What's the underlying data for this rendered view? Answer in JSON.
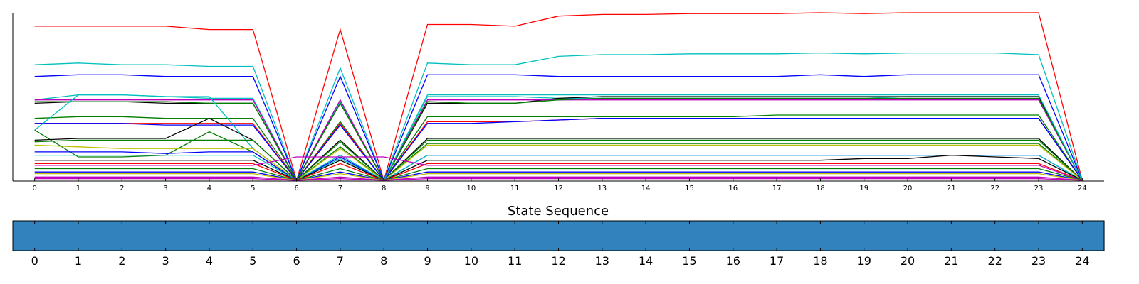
{
  "chart_data": [
    {
      "type": "line",
      "title": "",
      "xlabel": "",
      "ylabel": "",
      "x": [
        0,
        1,
        2,
        3,
        4,
        5,
        6,
        7,
        8,
        9,
        10,
        11,
        12,
        13,
        14,
        15,
        16,
        17,
        18,
        19,
        20,
        21,
        22,
        23,
        24
      ],
      "x_tick_labels": [
        "0",
        "1",
        "2",
        "3",
        "4",
        "5",
        "6",
        "7",
        "8",
        "9",
        "10",
        "11",
        "12",
        "13",
        "14",
        "15",
        "16",
        "17",
        "18",
        "19",
        "20",
        "21",
        "22",
        "23",
        "24"
      ],
      "xlim": [
        -0.5,
        24.5
      ],
      "ylim": [
        0,
        1.0
      ],
      "y_ticks_shown": false,
      "grid": false,
      "legend": "none",
      "note_on_values": "y axis is unlabeled; values are relative heights in [0,1]. Many (~100) overlapping series; representative subset recorded.",
      "series": [
        {
          "color": "#ff0000",
          "values": [
            0.92,
            0.92,
            0.92,
            0.92,
            0.9,
            0.9,
            0.0,
            0.9,
            0.0,
            0.93,
            0.93,
            0.92,
            0.98,
            0.99,
            0.99,
            0.995,
            0.995,
            0.995,
            1.0,
            0.995,
            1.0,
            1.0,
            1.0,
            1.0,
            0.0
          ]
        },
        {
          "color": "#00bfbf",
          "values": [
            0.69,
            0.7,
            0.69,
            0.69,
            0.68,
            0.68,
            0.0,
            0.67,
            0.0,
            0.7,
            0.69,
            0.69,
            0.74,
            0.75,
            0.75,
            0.755,
            0.755,
            0.755,
            0.76,
            0.755,
            0.76,
            0.76,
            0.76,
            0.75,
            0.0
          ]
        },
        {
          "color": "#0000ff",
          "values": [
            0.62,
            0.63,
            0.63,
            0.62,
            0.62,
            0.62,
            0.0,
            0.62,
            0.0,
            0.63,
            0.63,
            0.63,
            0.62,
            0.62,
            0.62,
            0.62,
            0.62,
            0.62,
            0.63,
            0.62,
            0.63,
            0.63,
            0.63,
            0.63,
            0.0
          ]
        },
        {
          "color": "#00bfbf",
          "values": [
            0.48,
            0.51,
            0.51,
            0.5,
            0.49,
            0.49,
            0.0,
            0.47,
            0.0,
            0.5,
            0.5,
            0.5,
            0.49,
            0.49,
            0.49,
            0.49,
            0.49,
            0.49,
            0.49,
            0.49,
            0.5,
            0.5,
            0.5,
            0.5,
            0.0
          ]
        },
        {
          "color": "#000000",
          "values": [
            0.46,
            0.47,
            0.47,
            0.46,
            0.46,
            0.46,
            0.0,
            0.46,
            0.0,
            0.46,
            0.46,
            0.46,
            0.49,
            0.5,
            0.5,
            0.5,
            0.5,
            0.5,
            0.5,
            0.5,
            0.5,
            0.5,
            0.5,
            0.5,
            0.0
          ]
        },
        {
          "color": "#bf00bf",
          "values": [
            0.48,
            0.48,
            0.48,
            0.48,
            0.48,
            0.48,
            0.0,
            0.48,
            0.0,
            0.48,
            0.48,
            0.48,
            0.48,
            0.48,
            0.48,
            0.48,
            0.48,
            0.48,
            0.48,
            0.48,
            0.48,
            0.48,
            0.48,
            0.48,
            0.0
          ]
        },
        {
          "color": "#007f00",
          "values": [
            0.47,
            0.47,
            0.47,
            0.47,
            0.46,
            0.46,
            0.0,
            0.46,
            0.0,
            0.47,
            0.46,
            0.46,
            0.48,
            0.49,
            0.49,
            0.49,
            0.49,
            0.49,
            0.49,
            0.49,
            0.49,
            0.49,
            0.49,
            0.49,
            0.0
          ]
        },
        {
          "color": "#007f00",
          "values": [
            0.37,
            0.38,
            0.38,
            0.37,
            0.37,
            0.37,
            0.0,
            0.35,
            0.0,
            0.38,
            0.38,
            0.38,
            0.38,
            0.38,
            0.38,
            0.38,
            0.38,
            0.39,
            0.39,
            0.39,
            0.39,
            0.39,
            0.39,
            0.39,
            0.0
          ]
        },
        {
          "color": "#ff0000",
          "values": [
            0.34,
            0.34,
            0.34,
            0.34,
            0.34,
            0.34,
            0.0,
            0.34,
            0.0,
            0.35,
            0.35,
            0.35,
            0.36,
            0.37,
            0.37,
            0.37,
            0.37,
            0.37,
            0.37,
            0.37,
            0.37,
            0.37,
            0.37,
            0.37,
            0.0
          ]
        },
        {
          "color": "#0000ff",
          "values": [
            0.34,
            0.34,
            0.34,
            0.33,
            0.33,
            0.33,
            0.0,
            0.33,
            0.0,
            0.34,
            0.34,
            0.35,
            0.36,
            0.37,
            0.37,
            0.37,
            0.37,
            0.37,
            0.37,
            0.37,
            0.37,
            0.37,
            0.37,
            0.37,
            0.0
          ]
        },
        {
          "color": "#00bfbf",
          "values": [
            0.3,
            0.51,
            0.51,
            0.5,
            0.5,
            0.19,
            0.0,
            0.13,
            0.0,
            0.51,
            0.51,
            0.51,
            0.51,
            0.51,
            0.51,
            0.51,
            0.51,
            0.51,
            0.51,
            0.51,
            0.51,
            0.51,
            0.51,
            0.51,
            0.0
          ]
        },
        {
          "color": "#007f00",
          "values": [
            0.3,
            0.14,
            0.14,
            0.15,
            0.29,
            0.17,
            0.0,
            0.2,
            0.0,
            0.22,
            0.22,
            0.22,
            0.22,
            0.22,
            0.22,
            0.22,
            0.22,
            0.22,
            0.22,
            0.22,
            0.22,
            0.22,
            0.22,
            0.22,
            0.0
          ]
        },
        {
          "color": "#000000",
          "values": [
            0.24,
            0.25,
            0.25,
            0.25,
            0.37,
            0.24,
            0.0,
            0.24,
            0.0,
            0.25,
            0.25,
            0.25,
            0.25,
            0.25,
            0.25,
            0.25,
            0.25,
            0.25,
            0.25,
            0.25,
            0.25,
            0.25,
            0.25,
            0.25,
            0.0
          ]
        },
        {
          "color": "#007f00",
          "values": [
            0.23,
            0.24,
            0.24,
            0.24,
            0.24,
            0.24,
            0.0,
            0.23,
            0.0,
            0.24,
            0.24,
            0.24,
            0.24,
            0.24,
            0.24,
            0.24,
            0.24,
            0.24,
            0.24,
            0.24,
            0.24,
            0.24,
            0.24,
            0.24,
            0.0
          ]
        },
        {
          "color": "#bfbf00",
          "values": [
            0.21,
            0.2,
            0.19,
            0.19,
            0.19,
            0.19,
            0.0,
            0.19,
            0.0,
            0.21,
            0.21,
            0.21,
            0.21,
            0.21,
            0.21,
            0.21,
            0.21,
            0.21,
            0.21,
            0.21,
            0.21,
            0.21,
            0.21,
            0.21,
            0.0
          ]
        },
        {
          "color": "#0000ff",
          "values": [
            0.17,
            0.17,
            0.17,
            0.16,
            0.17,
            0.17,
            0.0,
            0.14,
            0.0,
            0.15,
            0.15,
            0.15,
            0.15,
            0.15,
            0.15,
            0.15,
            0.15,
            0.15,
            0.15,
            0.15,
            0.15,
            0.15,
            0.15,
            0.15,
            0.0
          ]
        },
        {
          "color": "#00bfbf",
          "values": [
            0.15,
            0.15,
            0.15,
            0.15,
            0.15,
            0.15,
            0.0,
            0.15,
            0.0,
            0.15,
            0.15,
            0.15,
            0.15,
            0.15,
            0.15,
            0.15,
            0.15,
            0.15,
            0.15,
            0.15,
            0.15,
            0.15,
            0.15,
            0.15,
            0.0
          ]
        },
        {
          "color": "#000000",
          "values": [
            0.12,
            0.12,
            0.12,
            0.12,
            0.12,
            0.12,
            0.0,
            0.12,
            0.0,
            0.12,
            0.12,
            0.12,
            0.12,
            0.12,
            0.12,
            0.12,
            0.12,
            0.12,
            0.12,
            0.13,
            0.13,
            0.15,
            0.14,
            0.13,
            0.0
          ]
        },
        {
          "color": "#ff0000",
          "values": [
            0.1,
            0.1,
            0.1,
            0.1,
            0.1,
            0.1,
            0.0,
            0.1,
            0.0,
            0.1,
            0.1,
            0.1,
            0.1,
            0.1,
            0.1,
            0.1,
            0.1,
            0.1,
            0.1,
            0.1,
            0.1,
            0.1,
            0.1,
            0.1,
            0.0
          ]
        },
        {
          "color": "#bf00bf",
          "values": [
            0.09,
            0.09,
            0.09,
            0.09,
            0.09,
            0.09,
            0.14,
            0.14,
            0.14,
            0.09,
            0.09,
            0.09,
            0.09,
            0.09,
            0.09,
            0.09,
            0.09,
            0.09,
            0.09,
            0.09,
            0.09,
            0.09,
            0.09,
            0.09,
            0.0
          ]
        },
        {
          "color": "#007f00",
          "values": [
            0.07,
            0.07,
            0.07,
            0.07,
            0.07,
            0.07,
            0.0,
            0.07,
            0.0,
            0.07,
            0.07,
            0.07,
            0.07,
            0.07,
            0.07,
            0.07,
            0.07,
            0.07,
            0.07,
            0.07,
            0.07,
            0.07,
            0.07,
            0.07,
            0.0
          ]
        },
        {
          "color": "#0000ff",
          "values": [
            0.05,
            0.05,
            0.05,
            0.05,
            0.05,
            0.05,
            0.0,
            0.05,
            0.0,
            0.05,
            0.05,
            0.05,
            0.05,
            0.05,
            0.05,
            0.05,
            0.05,
            0.05,
            0.05,
            0.05,
            0.05,
            0.05,
            0.05,
            0.05,
            0.0
          ]
        },
        {
          "color": "#bfbf00",
          "values": [
            0.04,
            0.04,
            0.04,
            0.04,
            0.04,
            0.04,
            0.0,
            0.04,
            0.0,
            0.04,
            0.04,
            0.04,
            0.04,
            0.04,
            0.04,
            0.04,
            0.04,
            0.04,
            0.04,
            0.04,
            0.04,
            0.04,
            0.04,
            0.04,
            0.0
          ]
        },
        {
          "color": "#bf00bf",
          "values": [
            0.02,
            0.02,
            0.02,
            0.02,
            0.02,
            0.02,
            0.0,
            0.02,
            0.0,
            0.02,
            0.02,
            0.02,
            0.02,
            0.02,
            0.02,
            0.02,
            0.02,
            0.02,
            0.02,
            0.02,
            0.02,
            0.02,
            0.02,
            0.02,
            0.0
          ]
        },
        {
          "color": "#bf00bf",
          "values": [
            0.01,
            0.01,
            0.01,
            0.01,
            0.01,
            0.01,
            0.0,
            0.01,
            0.0,
            0.01,
            0.01,
            0.01,
            0.01,
            0.01,
            0.01,
            0.01,
            0.01,
            0.01,
            0.01,
            0.01,
            0.01,
            0.01,
            0.01,
            0.01,
            0.0
          ]
        }
      ]
    },
    {
      "type": "heatmap",
      "title": "State Sequence",
      "x_tick_labels": [
        "0",
        "1",
        "2",
        "3",
        "4",
        "5",
        "6",
        "7",
        "8",
        "9",
        "10",
        "11",
        "12",
        "13",
        "14",
        "15",
        "16",
        "17",
        "18",
        "19",
        "20",
        "21",
        "22",
        "23",
        "24"
      ],
      "xlim": [
        -0.5,
        24.5
      ],
      "states": [
        0,
        0,
        0,
        0,
        0,
        0,
        0,
        0,
        0,
        0,
        0,
        0,
        0,
        0,
        0,
        0,
        0,
        0,
        0,
        0,
        0,
        0,
        0,
        0,
        0
      ],
      "state_color": "#3182bd",
      "grid": false,
      "legend": "none"
    }
  ]
}
